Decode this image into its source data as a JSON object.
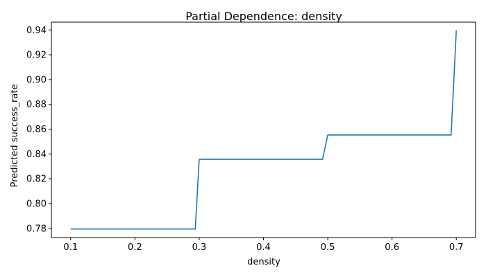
{
  "chart_data": {
    "type": "line",
    "title": "Partial Dependence: density",
    "xlabel": "density",
    "ylabel": "Predicted success_rate",
    "xlim": [
      0.07,
      0.73
    ],
    "ylim": [
      0.7726,
      0.9463
    ],
    "x_ticks": [
      0.1,
      0.2,
      0.3,
      0.4,
      0.5,
      0.6,
      0.7
    ],
    "x_tick_labels": [
      "0.1",
      "0.2",
      "0.3",
      "0.4",
      "0.5",
      "0.6",
      "0.7"
    ],
    "y_ticks": [
      0.78,
      0.8,
      0.82,
      0.84,
      0.86,
      0.88,
      0.9,
      0.92,
      0.94
    ],
    "y_tick_labels": [
      "0.78",
      "0.80",
      "0.82",
      "0.84",
      "0.86",
      "0.88",
      "0.90",
      "0.92",
      "0.94"
    ],
    "grid": false,
    "line_color": "#1f77b4",
    "series": [
      {
        "x": [
          0.1,
          0.1606,
          0.2212,
          0.2939,
          0.3,
          0.3667,
          0.4333,
          0.4919,
          0.5,
          0.5667,
          0.6333,
          0.6919,
          0.7
        ],
        "y": [
          0.7795,
          0.7795,
          0.7795,
          0.7795,
          0.8357,
          0.8357,
          0.8357,
          0.8357,
          0.8553,
          0.8553,
          0.8553,
          0.8553,
          0.9396
        ]
      }
    ]
  }
}
